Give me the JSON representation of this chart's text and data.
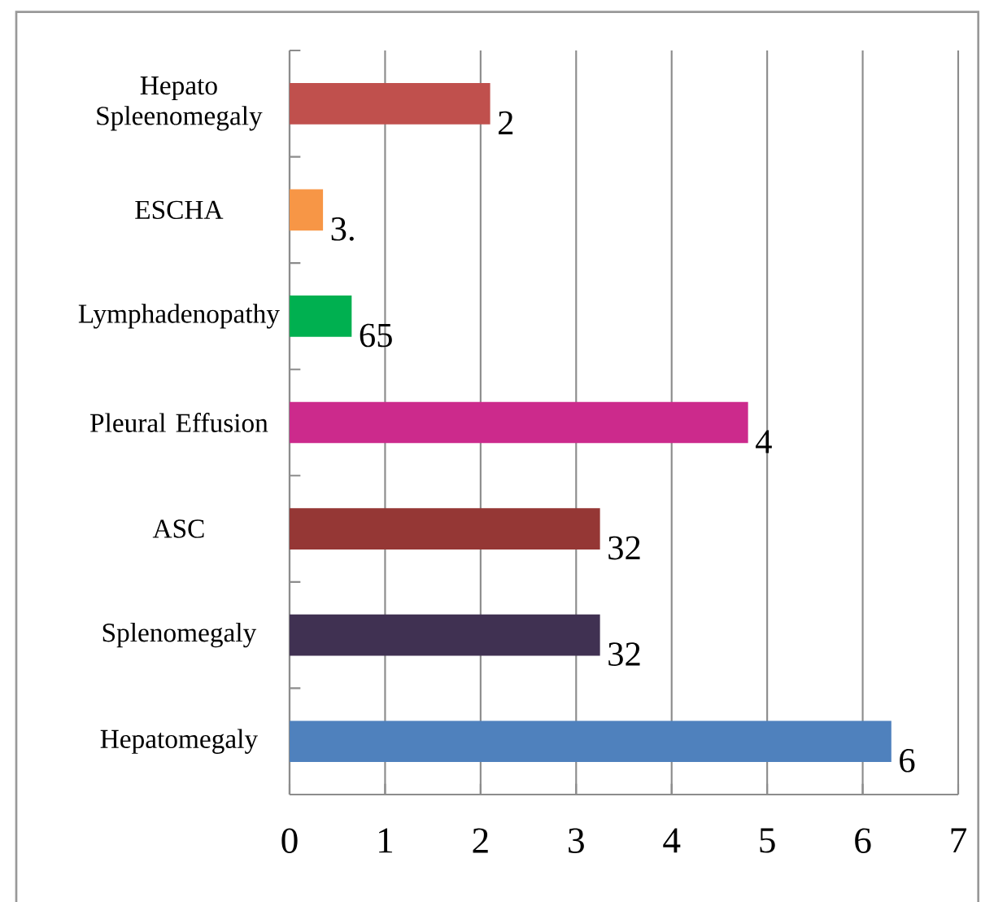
{
  "chart_data": {
    "type": "bar",
    "orientation": "horizontal",
    "categories": [
      "Hepato Spleenomegaly",
      "ESCHA",
      "Lymphadenopathy",
      "Pleural Effusion",
      "ASC",
      "Splenomegaly",
      "Hepatomegaly"
    ],
    "values": [
      2.1,
      0.35,
      0.65,
      4.8,
      3.25,
      3.25,
      6.3
    ],
    "colors": [
      "#c0504d",
      "#f79646",
      "#00b050",
      "#cc2a8c",
      "#953735",
      "#403152",
      "#4f81bd"
    ],
    "annotations": [
      {
        "text": "2",
        "x": 2.1,
        "y": "Hepato Spleenomegaly"
      },
      {
        "text": "3.",
        "x": 0.35,
        "y": "ESCHA"
      },
      {
        "text": "65",
        "x": 0.65,
        "y": "Lymphadenopathy"
      },
      {
        "text": "4",
        "x": 4.8,
        "y": "Pleural Effusion"
      },
      {
        "text": "32",
        "x": 3.25,
        "y": "ASC"
      },
      {
        "text": "32",
        "x": 3.25,
        "y": "Splenomegaly"
      },
      {
        "text": "6",
        "x": 6.3,
        "y": "Hepatomegaly"
      }
    ],
    "xlim": [
      0,
      7
    ],
    "xticks": [
      0,
      1,
      2,
      3,
      4,
      5,
      6,
      7
    ],
    "grid": "x"
  }
}
